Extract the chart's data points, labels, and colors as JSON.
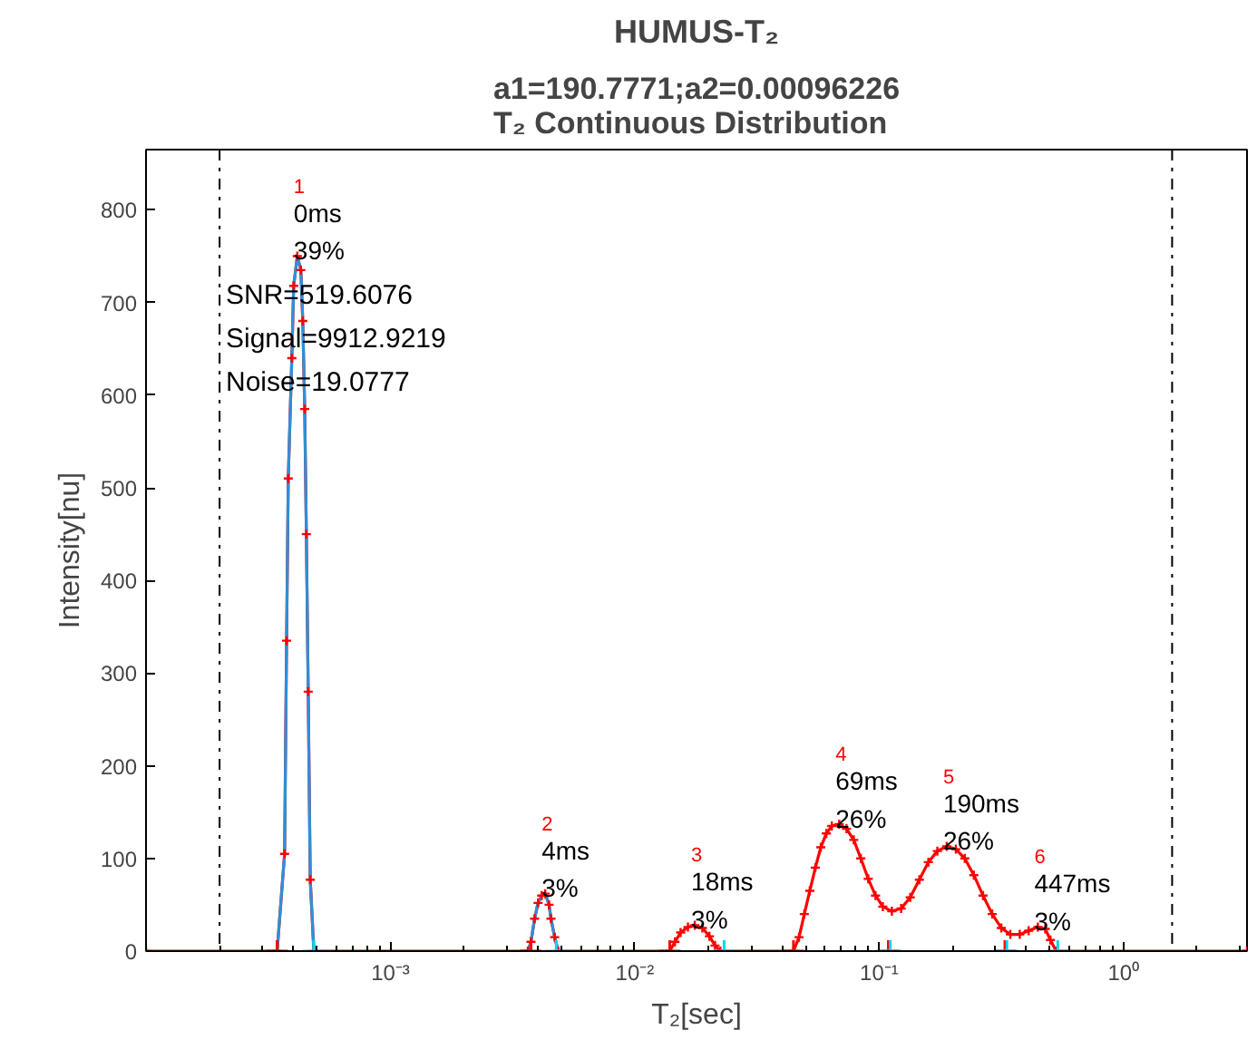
{
  "chart_data": {
    "type": "line",
    "title": "HUMUS-T₂",
    "subtitle": "a1=190.7771;a2=0.00096226\nT₂ Continuous Distribution",
    "xlabel": "T₂[sec]",
    "ylabel": "Intensity[nu]",
    "log": "x",
    "xlim": [
      0.0001,
      3.2
    ],
    "ylim": [
      0,
      865
    ],
    "xticks": [
      {
        "value": 0.001,
        "label": "10⁻³"
      },
      {
        "value": 0.01,
        "label": "10⁻²"
      },
      {
        "value": 0.1,
        "label": "10⁻¹"
      },
      {
        "value": 1,
        "label": "10⁰"
      }
    ],
    "yticks": [
      0,
      100,
      200,
      300,
      400,
      500,
      600,
      700,
      800
    ],
    "grid": false,
    "series": [
      {
        "color": "#ff0000",
        "marker": "cross",
        "x": [
          0.0001,
          0.000344,
          0.000369,
          0.000376,
          0.000382,
          0.000395,
          0.000402,
          0.000416,
          0.00043,
          0.000438,
          0.000446,
          0.000453,
          0.000461,
          0.00047,
          0.000486,
          0.00365,
          0.00376,
          0.00389,
          0.00402,
          0.00416,
          0.0043,
          0.00446,
          0.00454,
          0.0047,
          0.00486,
          0.0139,
          0.0146,
          0.0154,
          0.0165,
          0.0176,
          0.0189,
          0.0202,
          0.0213,
          0.0224,
          0.0446,
          0.047,
          0.0494,
          0.052,
          0.0548,
          0.0577,
          0.0608,
          0.064,
          0.0686,
          0.0735,
          0.0787,
          0.0841,
          0.0902,
          0.0966,
          0.1035,
          0.1127,
          0.123,
          0.134,
          0.146,
          0.159,
          0.173,
          0.189,
          0.206,
          0.224,
          0.244,
          0.266,
          0.29,
          0.316,
          0.344,
          0.376,
          0.409,
          0.446,
          0.478,
          0.502,
          0.53,
          3.2
        ],
        "values": [
          0,
          0,
          105,
          335,
          510,
          640,
          718,
          750,
          735,
          680,
          585,
          450,
          280,
          77,
          0,
          0,
          10,
          35,
          52,
          60,
          62,
          50,
          35,
          15,
          0,
          0,
          10,
          20,
          26,
          28,
          25,
          16,
          6,
          0,
          0,
          15,
          40,
          65,
          90,
          112,
          127,
          135,
          137,
          132,
          120,
          100,
          78,
          60,
          48,
          43,
          46,
          58,
          77,
          96,
          108,
          113,
          110,
          100,
          82,
          60,
          40,
          25,
          18,
          18,
          22,
          26,
          24,
          12,
          0,
          0
        ]
      },
      {
        "color": "#2f8fd8",
        "x": [
          0.000344,
          0.000369,
          0.000376,
          0.000382,
          0.000395,
          0.000402,
          0.000416,
          0.00043,
          0.000438,
          0.000446,
          0.000453,
          0.000461,
          0.00047,
          0.000486,
          0.001,
          0.00365,
          0.00376,
          0.00389,
          0.00402,
          0.00416,
          0.0043,
          0.00446,
          0.00454,
          0.0047,
          0.00486
        ],
        "values": [
          0,
          105,
          335,
          510,
          640,
          718,
          750,
          735,
          680,
          585,
          450,
          280,
          77,
          0,
          null,
          0,
          10,
          35,
          52,
          60,
          62,
          50,
          35,
          15,
          0
        ]
      },
      {
        "type": "scatter",
        "color": "#ff0000",
        "marker": "cross",
        "x": [
          0.000344,
          0.00376,
          0.0139,
          0.0446,
          0.109,
          0.327
        ],
        "values": [
          0,
          0,
          0,
          0,
          0,
          0
        ]
      },
      {
        "type": "scatter",
        "color": "#00d8e8",
        "marker": "cross",
        "x": [
          0.000486,
          0.00477,
          0.0232,
          0.111,
          0.333,
          0.538
        ],
        "values": [
          0,
          0,
          0,
          0,
          0,
          0
        ]
      }
    ],
    "ref_lines": [
      {
        "axis": "x",
        "value": 0.0002,
        "label": null,
        "color": "#000000",
        "line_style": "dashdot"
      },
      {
        "axis": "x",
        "value": 1.58,
        "label": null,
        "color": "#000000",
        "line_style": "dashdot"
      }
    ],
    "annotations": [
      {
        "text": "1",
        "x": 0.000416,
        "y": 750
      },
      {
        "text": "0ms\n39%",
        "x": 0.000416,
        "y": 750
      },
      {
        "text": "2",
        "x": 0.0043,
        "y": 62
      },
      {
        "text": "4ms\n3%",
        "x": 0.0043,
        "y": 62
      },
      {
        "text": "3",
        "x": 0.0176,
        "y": 28
      },
      {
        "text": "18ms\n3%",
        "x": 0.0176,
        "y": 28
      },
      {
        "text": "4",
        "x": 0.0686,
        "y": 137
      },
      {
        "text": "69ms\n26%",
        "x": 0.0686,
        "y": 137
      },
      {
        "text": "5",
        "x": 0.189,
        "y": 113
      },
      {
        "text": "190ms\n26%",
        "x": 0.189,
        "y": 113
      },
      {
        "text": "6",
        "x": 0.446,
        "y": 26
      },
      {
        "text": "447ms\n3%",
        "x": 0.446,
        "y": 26
      },
      "SNR=519.6076",
      "Signal=9912.9219",
      "Noise=19.0777"
    ]
  }
}
